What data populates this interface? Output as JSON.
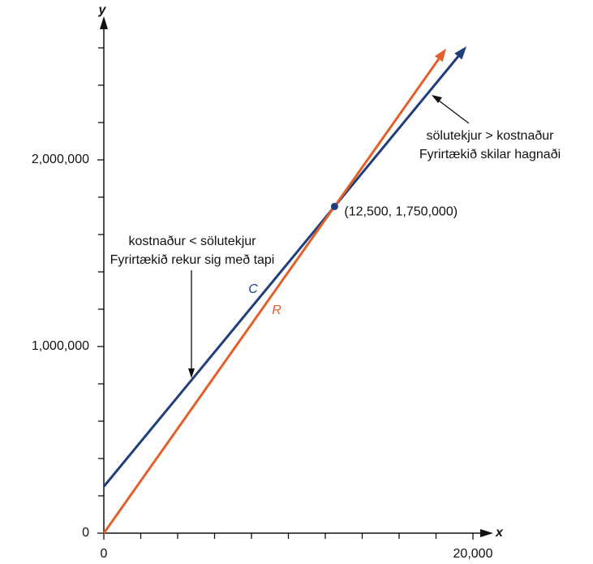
{
  "chart_data": {
    "type": "line",
    "x_label": "x",
    "y_label": "y",
    "xlim": [
      0,
      21000
    ],
    "ylim": [
      0,
      2770000
    ],
    "xticks": [
      {
        "value": 0,
        "label": "0"
      },
      {
        "value": 20000,
        "label": "20,000"
      }
    ],
    "xminorticks": [
      2000,
      4000,
      6000,
      8000,
      10000,
      12000,
      14000,
      16000,
      18000
    ],
    "yticks": [
      0,
      {
        "value": 1000000,
        "label": "1,000,000"
      },
      {
        "value": 2000000,
        "label": "2,000,000"
      }
    ],
    "yminorticks": [
      200000,
      400000,
      600000,
      800000,
      1200000,
      1400000,
      1600000,
      1800000,
      2200000,
      2400000,
      2600000
    ],
    "series": [
      {
        "name": "C",
        "color": "#1f3f7a",
        "x": [
          0,
          19650
        ],
        "values": [
          250000,
          2608000
        ]
      },
      {
        "name": "R",
        "color": "#e2602a",
        "x": [
          0,
          18550
        ],
        "values": [
          0,
          2597000
        ]
      }
    ],
    "point": {
      "x": 12500,
      "y": 1750000,
      "label": "(12,500, 1,750,000)"
    },
    "annotations": [
      {
        "lines": [
          "kostnaður < sölutekjur",
          "Fyrirtækið rekur sig með tapi"
        ]
      },
      {
        "lines": [
          "sölutekjur > kostnaður",
          "Fyrirtækið skilar hagnaði"
        ]
      }
    ]
  }
}
